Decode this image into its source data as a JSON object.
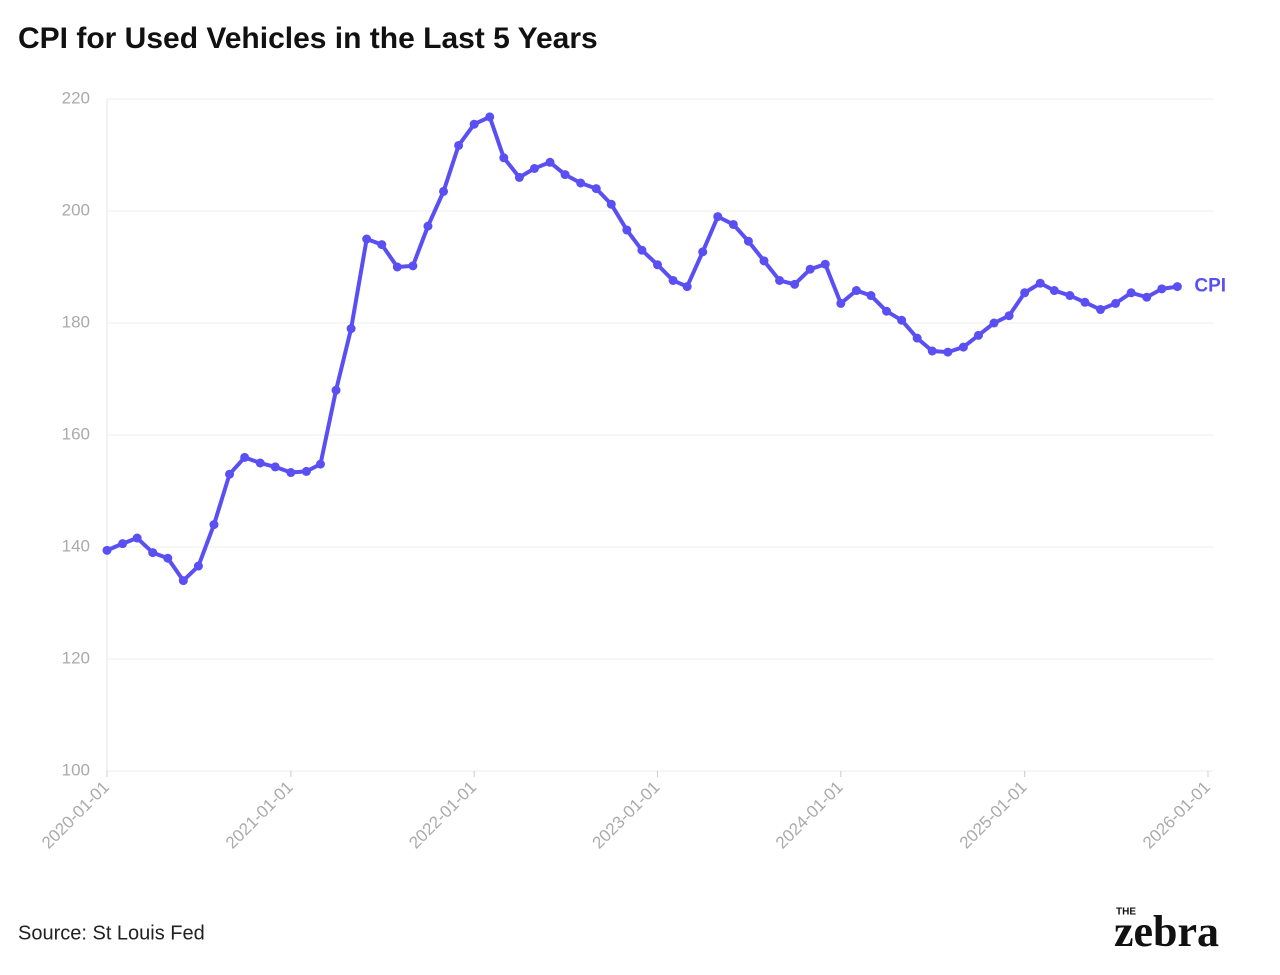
{
  "chart_data": {
    "type": "line",
    "title": "CPI for Used Vehicles in the Last 5 Years",
    "x": [
      "2020-01-01",
      "2020-02-01",
      "2020-03-01",
      "2020-04-01",
      "2020-05-01",
      "2020-06-01",
      "2020-07-01",
      "2020-08-01",
      "2020-09-01",
      "2020-10-01",
      "2020-11-01",
      "2020-12-01",
      "2021-01-01",
      "2021-02-01",
      "2021-03-01",
      "2021-04-01",
      "2021-05-01",
      "2021-06-01",
      "2021-07-01",
      "2021-08-01",
      "2021-09-01",
      "2021-10-01",
      "2021-11-01",
      "2021-12-01",
      "2022-01-01",
      "2022-02-01",
      "2022-03-01",
      "2022-04-01",
      "2022-05-01",
      "2022-06-01",
      "2022-07-01",
      "2022-08-01",
      "2022-09-01",
      "2022-10-01",
      "2022-11-01",
      "2022-12-01",
      "2023-01-01",
      "2023-02-01",
      "2023-03-01",
      "2023-04-01",
      "2023-05-01",
      "2023-06-01",
      "2023-07-01",
      "2023-08-01",
      "2023-09-01",
      "2023-10-01",
      "2023-11-01",
      "2023-12-01",
      "2024-01-01",
      "2024-02-01",
      "2024-03-01",
      "2024-04-01",
      "2024-05-01",
      "2024-06-01",
      "2024-07-01",
      "2024-08-01",
      "2024-09-01",
      "2024-10-01",
      "2024-11-01",
      "2024-12-01",
      "2025-01-01",
      "2025-02-01",
      "2025-03-01",
      "2025-04-01",
      "2025-05-01",
      "2025-06-01",
      "2025-07-01",
      "2025-08-01",
      "2025-09-01",
      "2025-10-01",
      "2025-11-01"
    ],
    "series": [
      {
        "name": "CPI",
        "color": "#5a4ff3",
        "values": [
          139.4,
          140.6,
          141.6,
          139.0,
          138.0,
          134.0,
          136.6,
          144.0,
          153.0,
          156.0,
          155.0,
          154.3,
          153.3,
          153.5,
          154.8,
          168.0,
          179.0,
          195.0,
          194.0,
          190.0,
          190.2,
          197.3,
          203.5,
          211.7,
          215.5,
          216.8,
          209.5,
          206.0,
          207.6,
          208.7,
          206.5,
          205.0,
          204.0,
          201.2,
          196.6,
          193.0,
          190.4,
          187.6,
          186.5,
          192.7,
          199.0,
          197.6,
          194.6,
          191.1,
          187.6,
          186.9,
          189.6,
          190.5,
          183.5,
          185.8,
          184.9,
          182.1,
          180.5,
          177.3,
          175.0,
          174.8,
          175.7,
          177.8,
          180.0,
          181.3,
          185.4,
          187.1,
          185.8,
          184.9,
          183.7,
          182.4,
          183.5,
          185.4,
          184.6,
          186.1,
          186.5
        ]
      }
    ],
    "xlim": [
      "2020-01-01",
      "2026-01-01"
    ],
    "xticks": [
      "2020-01-01",
      "2021-01-01",
      "2022-01-01",
      "2023-01-01",
      "2024-01-01",
      "2025-01-01",
      "2026-01-01"
    ],
    "ylim": [
      100,
      220
    ],
    "yticks": [
      100,
      120,
      140,
      160,
      180,
      200,
      220
    ],
    "grid": true
  },
  "source": "Source: St Louis Fed",
  "logo": {
    "small": "THE",
    "main": "zebra"
  }
}
